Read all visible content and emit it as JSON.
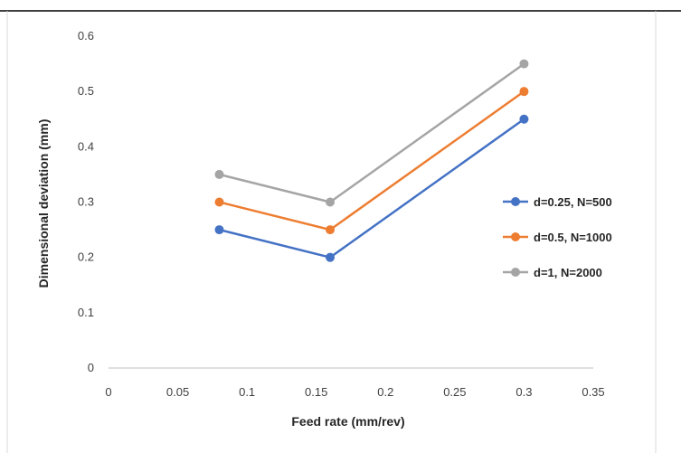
{
  "chart_data": {
    "type": "line",
    "title": "",
    "xlabel": "Feed rate (mm/rev)",
    "ylabel": "Dimensional deviation (mm)",
    "xlim": [
      0,
      0.35
    ],
    "ylim": [
      0,
      0.6
    ],
    "xticks": [
      "0",
      "0.05",
      "0.1",
      "0.15",
      "0.2",
      "0.25",
      "0.3",
      "0.35"
    ],
    "yticks": [
      "0",
      "0.1",
      "0.2",
      "0.3",
      "0.4",
      "0.5",
      "0.6"
    ],
    "grid": false,
    "legend_position": "right",
    "x": [
      0.08,
      0.16,
      0.3
    ],
    "series": [
      {
        "name": "d=0.25, N=500",
        "color": "#4472C4",
        "values": [
          0.25,
          0.2,
          0.45
        ]
      },
      {
        "name": "d=0.5, N=1000",
        "color": "#ED7D31",
        "values": [
          0.3,
          0.25,
          0.5
        ]
      },
      {
        "name": "d=1, N=2000",
        "color": "#A5A5A5",
        "values": [
          0.35,
          0.3,
          0.55
        ]
      }
    ]
  }
}
